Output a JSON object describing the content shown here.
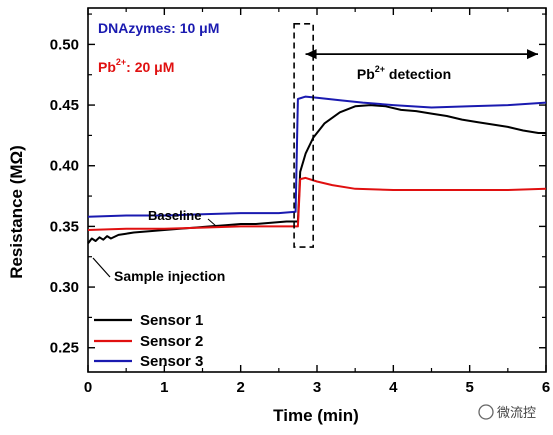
{
  "chart_data": {
    "type": "line",
    "xlabel": "Time (min)",
    "ylabel": "Resistance (MΩ)",
    "xlim": [
      0,
      6
    ],
    "ylim": [
      0.23,
      0.53
    ],
    "xticks": [
      0,
      1,
      2,
      3,
      4,
      5,
      6
    ],
    "yticks": [
      0.25,
      0.3,
      0.35,
      0.4,
      0.45,
      0.5
    ],
    "ytick_labels": [
      "0.25",
      "0.30",
      "0.35",
      "0.40",
      "0.45",
      "0.50"
    ],
    "grid": false,
    "legend_position": "bottom-left",
    "series": [
      {
        "name": "Sensor 1",
        "color": "#000000",
        "x": [
          0,
          0.05,
          0.1,
          0.15,
          0.2,
          0.25,
          0.3,
          0.4,
          0.5,
          0.6,
          0.8,
          1.0,
          1.2,
          1.4,
          1.6,
          1.8,
          2.0,
          2.2,
          2.4,
          2.6,
          2.75,
          2.78,
          2.85,
          2.95,
          3.1,
          3.3,
          3.5,
          3.7,
          3.9,
          4.1,
          4.3,
          4.5,
          4.7,
          4.9,
          5.1,
          5.3,
          5.5,
          5.7,
          5.9,
          6.0
        ],
        "y": [
          0.336,
          0.34,
          0.338,
          0.341,
          0.339,
          0.342,
          0.34,
          0.343,
          0.344,
          0.345,
          0.346,
          0.347,
          0.348,
          0.349,
          0.35,
          0.351,
          0.352,
          0.352,
          0.353,
          0.354,
          0.354,
          0.395,
          0.41,
          0.423,
          0.435,
          0.444,
          0.449,
          0.45,
          0.449,
          0.446,
          0.445,
          0.443,
          0.441,
          0.438,
          0.436,
          0.434,
          0.432,
          0.429,
          0.427,
          0.427
        ]
      },
      {
        "name": "Sensor 2",
        "color": "#e01010",
        "x": [
          0,
          0.5,
          1.0,
          1.5,
          2.0,
          2.5,
          2.75,
          2.78,
          2.85,
          3.0,
          3.2,
          3.5,
          4.0,
          4.5,
          5.0,
          5.5,
          6.0
        ],
        "y": [
          0.347,
          0.348,
          0.348,
          0.349,
          0.35,
          0.35,
          0.35,
          0.389,
          0.39,
          0.387,
          0.384,
          0.381,
          0.38,
          0.38,
          0.38,
          0.38,
          0.381
        ]
      },
      {
        "name": "Sensor 3",
        "color": "#1a1ab0",
        "x": [
          0,
          0.5,
          1.0,
          1.5,
          2.0,
          2.5,
          2.72,
          2.75,
          2.85,
          3.0,
          3.3,
          3.6,
          4.0,
          4.5,
          5.0,
          5.5,
          6.0
        ],
        "y": [
          0.358,
          0.359,
          0.359,
          0.36,
          0.361,
          0.361,
          0.362,
          0.455,
          0.457,
          0.456,
          0.454,
          0.452,
          0.45,
          0.448,
          0.449,
          0.45,
          0.452
        ]
      }
    ],
    "annotations": {
      "dnazyme": "DNAzymes: 10 μM",
      "pb_prefix": "Pb",
      "pb_sup": "2+",
      "pb_suffix": ": 20 μM",
      "detection_prefix": "Pb",
      "detection_sup": "2+",
      "detection_suffix": " detection",
      "baseline": "Baseline",
      "sample_injection": "Sample injection",
      "detection_range_x": [
        2.85,
        6.0
      ],
      "detection_range_y": 0.492,
      "dashed_box_x": [
        2.7,
        2.95
      ],
      "dashed_box_y": [
        0.333,
        0.517
      ]
    }
  },
  "watermark": {
    "label": "微流控"
  }
}
